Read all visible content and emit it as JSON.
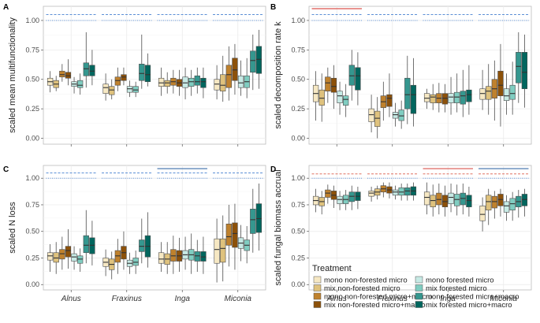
{
  "legend": {
    "title": "Treatment",
    "entries": [
      {
        "text": "mono  non-forested micro",
        "color": "#f6e8c3"
      },
      {
        "text": "mix    non-forested micro",
        "color": "#dfc27d"
      },
      {
        "text": "mono  non-forested micro+macro",
        "color": "#bf812d"
      },
      {
        "text": "mix    non-forested micro+macro",
        "color": "#8c510a"
      },
      {
        "text": "mono  forested micro",
        "color": "#c7eae5"
      },
      {
        "text": "mix    forested micro",
        "color": "#80cdc1"
      },
      {
        "text": "mono  forested micro+macro",
        "color": "#35978f"
      },
      {
        "text": "mix    forested micro+macro",
        "color": "#01665e"
      }
    ]
  },
  "chart_data": [
    {
      "type": "boxplot",
      "panel": "A",
      "ylabel": "scaled mean multifunctionality",
      "ylim": [
        -0.05,
        1.12
      ],
      "yticks": [
        "0.00",
        "0.25",
        "0.50",
        "0.75",
        "1.00"
      ],
      "categories": [
        "Alnus",
        "Fraxinus",
        "Inga",
        "Miconia"
      ],
      "ref_lines": [
        {
          "style": "dashed",
          "color": "#5b8fd6",
          "y": 1.05
        },
        {
          "style": "dotted",
          "color": "#5b8fd6",
          "y": 1.0
        }
      ],
      "sig_bars": [],
      "groups": [
        [
          [
            0.45,
            0.48,
            0.51,
            0.39,
            0.57
          ],
          [
            0.43,
            0.46,
            0.49,
            0.4,
            0.53
          ],
          [
            0.52,
            0.54,
            0.57,
            0.48,
            0.63
          ],
          [
            0.51,
            0.53,
            0.56,
            0.45,
            0.67
          ],
          [
            0.44,
            0.46,
            0.48,
            0.38,
            0.52
          ],
          [
            0.43,
            0.45,
            0.49,
            0.37,
            0.55
          ],
          [
            0.53,
            0.59,
            0.64,
            0.43,
            0.9
          ],
          [
            0.53,
            0.57,
            0.62,
            0.45,
            0.75
          ]
        ],
        [
          [
            0.38,
            0.43,
            0.46,
            0.32,
            0.55
          ],
          [
            0.37,
            0.41,
            0.44,
            0.33,
            0.5
          ],
          [
            0.45,
            0.49,
            0.52,
            0.4,
            0.6
          ],
          [
            0.49,
            0.52,
            0.54,
            0.45,
            0.6
          ],
          [
            0.39,
            0.42,
            0.44,
            0.35,
            0.49
          ],
          [
            0.39,
            0.41,
            0.44,
            0.35,
            0.48
          ],
          [
            0.49,
            0.55,
            0.63,
            0.42,
            0.88
          ],
          [
            0.48,
            0.54,
            0.62,
            0.44,
            0.72
          ]
        ],
        [
          [
            0.44,
            0.47,
            0.51,
            0.36,
            0.6
          ],
          [
            0.44,
            0.47,
            0.49,
            0.38,
            0.56
          ],
          [
            0.45,
            0.48,
            0.51,
            0.38,
            0.58
          ],
          [
            0.44,
            0.47,
            0.5,
            0.36,
            0.58
          ],
          [
            0.43,
            0.47,
            0.52,
            0.33,
            0.6
          ],
          [
            0.44,
            0.48,
            0.51,
            0.36,
            0.58
          ],
          [
            0.45,
            0.48,
            0.53,
            0.38,
            0.6
          ],
          [
            0.43,
            0.48,
            0.51,
            0.34,
            0.6
          ]
        ],
        [
          [
            0.41,
            0.46,
            0.5,
            0.33,
            0.62
          ],
          [
            0.4,
            0.45,
            0.54,
            0.31,
            0.7
          ],
          [
            0.43,
            0.54,
            0.62,
            0.32,
            0.78
          ],
          [
            0.49,
            0.58,
            0.68,
            0.37,
            0.8
          ],
          [
            0.43,
            0.47,
            0.53,
            0.36,
            0.66
          ],
          [
            0.43,
            0.48,
            0.53,
            0.34,
            0.68
          ],
          [
            0.56,
            0.66,
            0.74,
            0.41,
            0.88
          ],
          [
            0.55,
            0.67,
            0.78,
            0.42,
            0.92
          ]
        ]
      ]
    },
    {
      "type": "boxplot",
      "panel": "B",
      "ylabel": "scaled decomposition rate k",
      "ylim": [
        -0.05,
        1.12
      ],
      "yticks": [
        "0.00",
        "0.25",
        "0.50",
        "0.75",
        "1.00"
      ],
      "categories": [
        "Alnus",
        "Fraxinus",
        "Inga",
        "Miconia"
      ],
      "ref_lines": [
        {
          "style": "dashed",
          "color": "#5b8fd6",
          "y": 1.05
        },
        {
          "style": "dotted",
          "color": "#5b8fd6",
          "y": 1.0
        }
      ],
      "sig_bars": [
        {
          "category": 0,
          "color": "#d9544d",
          "y": 1.1
        }
      ],
      "groups": [
        [
          [
            0.31,
            0.38,
            0.45,
            0.15,
            0.57
          ],
          [
            0.28,
            0.34,
            0.41,
            0.14,
            0.55
          ],
          [
            0.4,
            0.47,
            0.52,
            0.3,
            0.6
          ],
          [
            0.39,
            0.44,
            0.51,
            0.25,
            0.62
          ],
          [
            0.3,
            0.36,
            0.4,
            0.2,
            0.48
          ],
          [
            0.28,
            0.33,
            0.36,
            0.18,
            0.46
          ],
          [
            0.45,
            0.53,
            0.62,
            0.32,
            0.75
          ],
          [
            0.41,
            0.53,
            0.6,
            0.28,
            0.73
          ]
        ],
        [
          [
            0.14,
            0.2,
            0.25,
            0.05,
            0.37
          ],
          [
            0.1,
            0.17,
            0.23,
            0.0,
            0.35
          ],
          [
            0.26,
            0.31,
            0.36,
            0.15,
            0.48
          ],
          [
            0.27,
            0.34,
            0.37,
            0.18,
            0.55
          ],
          [
            0.17,
            0.2,
            0.22,
            0.1,
            0.3
          ],
          [
            0.15,
            0.19,
            0.24,
            0.08,
            0.32
          ],
          [
            0.25,
            0.37,
            0.51,
            0.12,
            0.7
          ],
          [
            0.21,
            0.37,
            0.45,
            0.1,
            0.68
          ]
        ],
        [
          [
            0.31,
            0.34,
            0.38,
            0.25,
            0.42
          ],
          [
            0.3,
            0.35,
            0.37,
            0.24,
            0.46
          ],
          [
            0.3,
            0.34,
            0.38,
            0.22,
            0.47
          ],
          [
            0.29,
            0.34,
            0.38,
            0.22,
            0.46
          ],
          [
            0.3,
            0.35,
            0.38,
            0.2,
            0.52
          ],
          [
            0.3,
            0.35,
            0.39,
            0.22,
            0.55
          ],
          [
            0.29,
            0.36,
            0.4,
            0.18,
            0.58
          ],
          [
            0.31,
            0.37,
            0.41,
            0.2,
            0.62
          ]
        ],
        [
          [
            0.33,
            0.38,
            0.42,
            0.24,
            0.58
          ],
          [
            0.33,
            0.4,
            0.44,
            0.2,
            0.63
          ],
          [
            0.34,
            0.42,
            0.5,
            0.15,
            0.66
          ],
          [
            0.36,
            0.45,
            0.57,
            0.1,
            0.8
          ],
          [
            0.32,
            0.36,
            0.42,
            0.2,
            0.55
          ],
          [
            0.33,
            0.38,
            0.45,
            0.2,
            0.65
          ],
          [
            0.47,
            0.61,
            0.73,
            0.3,
            0.9
          ],
          [
            0.42,
            0.56,
            0.73,
            0.26,
            0.88
          ]
        ]
      ]
    },
    {
      "type": "boxplot",
      "panel": "C",
      "ylabel": "scaled N loss",
      "ylim": [
        -0.05,
        1.12
      ],
      "yticks": [
        "0.00",
        "0.25",
        "0.50",
        "0.75",
        "1.00"
      ],
      "categories": [
        "Alnus",
        "Fraxinus",
        "Inga",
        "Miconia"
      ],
      "ref_lines": [
        {
          "style": "dashed",
          "color": "#5b8fd6",
          "y": 1.05
        },
        {
          "style": "dotted",
          "color": "#5b8fd6",
          "y": 1.0
        }
      ],
      "sig_bars": [
        {
          "category": 2,
          "color": "#3b6ea8",
          "y": 1.09
        }
      ],
      "groups": [
        [
          [
            0.23,
            0.27,
            0.3,
            0.12,
            0.38
          ],
          [
            0.21,
            0.25,
            0.3,
            0.1,
            0.4
          ],
          [
            0.24,
            0.29,
            0.33,
            0.14,
            0.45
          ],
          [
            0.26,
            0.32,
            0.36,
            0.15,
            0.52
          ],
          [
            0.22,
            0.26,
            0.29,
            0.14,
            0.36
          ],
          [
            0.2,
            0.24,
            0.27,
            0.12,
            0.34
          ],
          [
            0.3,
            0.37,
            0.46,
            0.2,
            0.7
          ],
          [
            0.29,
            0.37,
            0.44,
            0.18,
            0.6
          ]
        ],
        [
          [
            0.17,
            0.21,
            0.25,
            0.08,
            0.33
          ],
          [
            0.14,
            0.19,
            0.24,
            0.05,
            0.31
          ],
          [
            0.21,
            0.27,
            0.32,
            0.1,
            0.43
          ],
          [
            0.24,
            0.3,
            0.36,
            0.14,
            0.5
          ],
          [
            0.17,
            0.2,
            0.23,
            0.1,
            0.3
          ],
          [
            0.18,
            0.21,
            0.25,
            0.1,
            0.32
          ],
          [
            0.31,
            0.36,
            0.42,
            0.2,
            0.62
          ],
          [
            0.26,
            0.36,
            0.46,
            0.16,
            0.68
          ]
        ],
        [
          [
            0.2,
            0.24,
            0.3,
            0.12,
            0.4
          ],
          [
            0.19,
            0.24,
            0.29,
            0.1,
            0.4
          ],
          [
            0.22,
            0.27,
            0.33,
            0.1,
            0.46
          ],
          [
            0.22,
            0.27,
            0.32,
            0.12,
            0.44
          ],
          [
            0.24,
            0.28,
            0.32,
            0.14,
            0.45
          ],
          [
            0.23,
            0.28,
            0.33,
            0.1,
            0.48
          ],
          [
            0.22,
            0.27,
            0.31,
            0.12,
            0.42
          ],
          [
            0.22,
            0.26,
            0.31,
            0.1,
            0.45
          ]
        ],
        [
          [
            0.2,
            0.33,
            0.43,
            0.02,
            0.62
          ],
          [
            0.21,
            0.34,
            0.43,
            0.03,
            0.65
          ],
          [
            0.37,
            0.45,
            0.57,
            0.17,
            0.75
          ],
          [
            0.35,
            0.48,
            0.58,
            0.14,
            0.76
          ],
          [
            0.34,
            0.39,
            0.44,
            0.22,
            0.56
          ],
          [
            0.32,
            0.37,
            0.42,
            0.2,
            0.55
          ],
          [
            0.48,
            0.61,
            0.71,
            0.3,
            0.9
          ],
          [
            0.49,
            0.62,
            0.76,
            0.32,
            0.95
          ]
        ]
      ]
    },
    {
      "type": "boxplot",
      "panel": "D",
      "ylabel": "scaled fungal biomass accrual",
      "ylim": [
        -0.05,
        1.12
      ],
      "yticks": [
        "0.00",
        "0.25",
        "0.50",
        "0.75",
        "1.00"
      ],
      "categories": [
        "Alnus",
        "Fraxinus",
        "Inga",
        "Miconia"
      ],
      "ref_lines": [
        {
          "style": "dashed",
          "color": "#e07060",
          "y": 1.04
        },
        {
          "style": "dotted",
          "color": "#5b8fd6",
          "y": 1.0
        }
      ],
      "sig_bars": [
        {
          "category": 2,
          "color": "#d9544d",
          "y": 1.09
        },
        {
          "category": 3,
          "color": "#3b6ea8",
          "y": 1.09
        }
      ],
      "groups": [
        [
          [
            0.75,
            0.79,
            0.83,
            0.68,
            0.9
          ],
          [
            0.74,
            0.78,
            0.82,
            0.66,
            0.88
          ],
          [
            0.82,
            0.86,
            0.89,
            0.76,
            0.94
          ],
          [
            0.8,
            0.84,
            0.88,
            0.72,
            0.93
          ],
          [
            0.76,
            0.8,
            0.83,
            0.7,
            0.88
          ],
          [
            0.76,
            0.8,
            0.84,
            0.7,
            0.89
          ],
          [
            0.78,
            0.83,
            0.87,
            0.7,
            0.93
          ],
          [
            0.79,
            0.83,
            0.87,
            0.71,
            0.92
          ]
        ],
        [
          [
            0.83,
            0.86,
            0.88,
            0.78,
            0.92
          ],
          [
            0.84,
            0.87,
            0.9,
            0.8,
            0.93
          ],
          [
            0.87,
            0.9,
            0.93,
            0.82,
            0.96
          ],
          [
            0.86,
            0.89,
            0.92,
            0.81,
            0.96
          ],
          [
            0.84,
            0.87,
            0.89,
            0.8,
            0.93
          ],
          [
            0.84,
            0.87,
            0.91,
            0.79,
            0.95
          ],
          [
            0.84,
            0.88,
            0.91,
            0.79,
            0.95
          ],
          [
            0.84,
            0.88,
            0.92,
            0.79,
            0.96
          ]
        ],
        [
          [
            0.75,
            0.82,
            0.87,
            0.66,
            0.96
          ],
          [
            0.73,
            0.79,
            0.84,
            0.64,
            0.94
          ],
          [
            0.75,
            0.8,
            0.86,
            0.66,
            0.95
          ],
          [
            0.73,
            0.78,
            0.84,
            0.64,
            0.93
          ],
          [
            0.76,
            0.82,
            0.86,
            0.68,
            0.95
          ],
          [
            0.74,
            0.8,
            0.85,
            0.65,
            0.94
          ],
          [
            0.75,
            0.81,
            0.86,
            0.66,
            0.95
          ],
          [
            0.73,
            0.79,
            0.84,
            0.64,
            0.92
          ]
        ],
        [
          [
            0.6,
            0.66,
            0.74,
            0.5,
            0.82
          ],
          [
            0.7,
            0.78,
            0.84,
            0.56,
            0.9
          ],
          [
            0.72,
            0.78,
            0.83,
            0.62,
            0.88
          ],
          [
            0.74,
            0.8,
            0.85,
            0.64,
            0.9
          ],
          [
            0.68,
            0.74,
            0.78,
            0.6,
            0.84
          ],
          [
            0.7,
            0.76,
            0.81,
            0.6,
            0.87
          ],
          [
            0.73,
            0.78,
            0.83,
            0.63,
            0.89
          ],
          [
            0.74,
            0.8,
            0.85,
            0.64,
            0.9
          ]
        ]
      ]
    }
  ]
}
